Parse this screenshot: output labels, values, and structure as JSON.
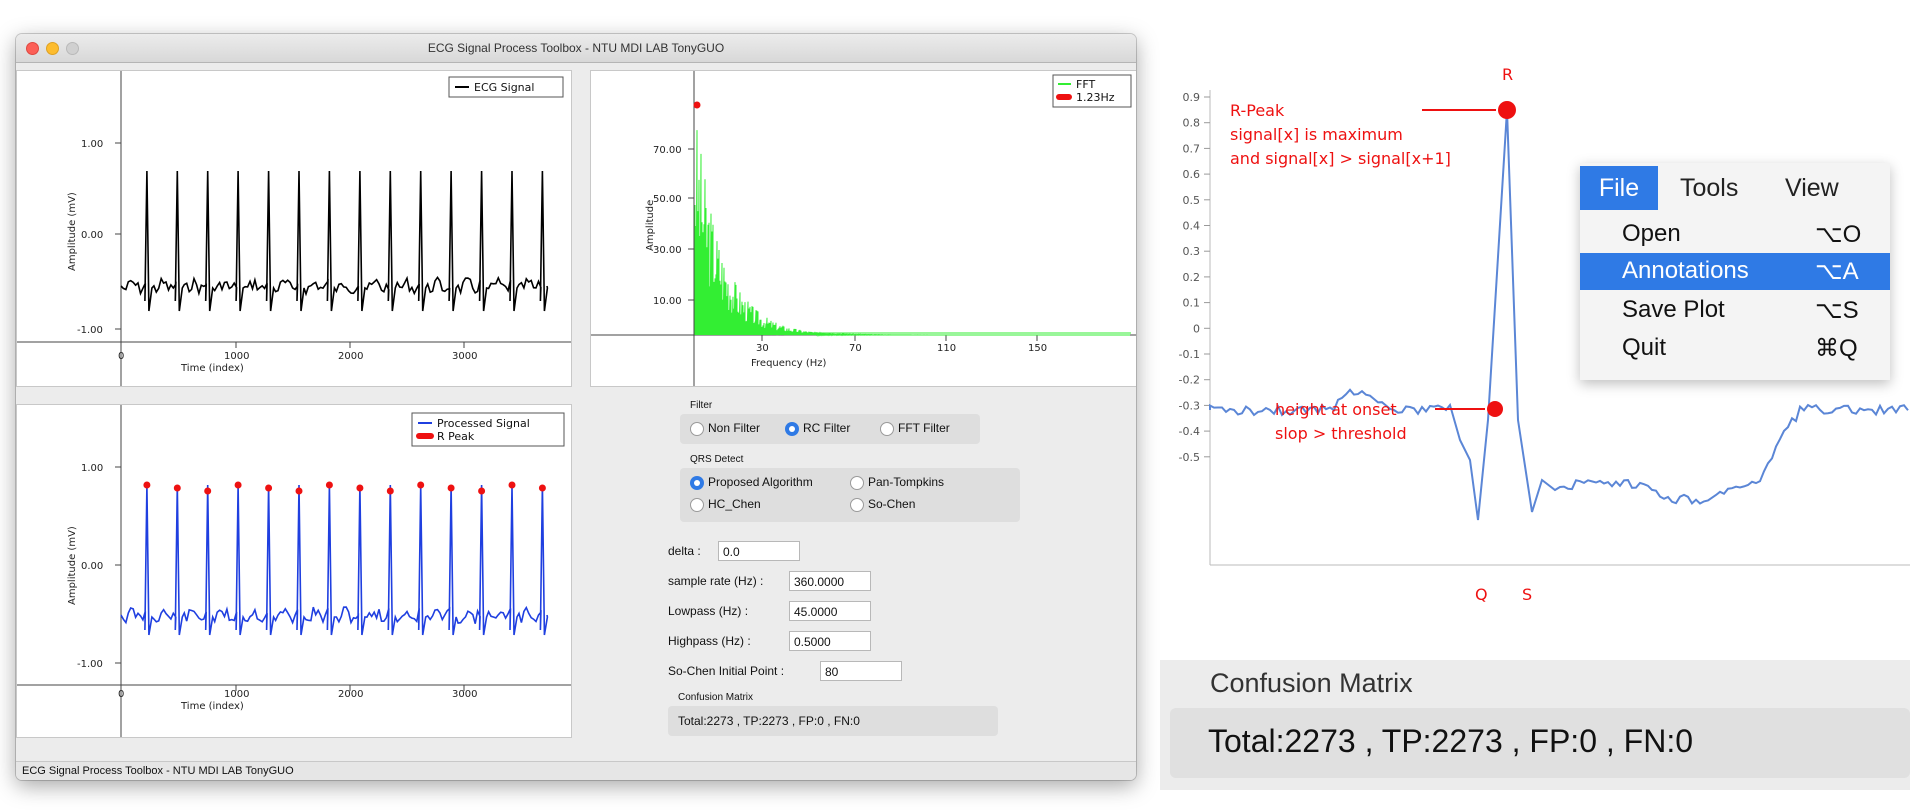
{
  "window": {
    "title": "ECG Signal Process Toolbox - NTU MDI LAB TonyGUO",
    "status": "ECG Signal Process Toolbox - NTU MDI LAB TonyGUO"
  },
  "colors": {
    "ecg": "#000000",
    "fft": "#33ee33",
    "processed": "#1f3fe0",
    "peak": "#ee1111",
    "accent": "#2f7ae5",
    "annotation": "#ee1111"
  },
  "plots": {
    "ecg": {
      "legend": "ECG Signal",
      "ylabel": "Amplitude (mV)",
      "xlabel": "Time (index)",
      "yticks": [
        "1.00",
        "0.00",
        "-1.00"
      ],
      "xticks": [
        "0",
        "1000",
        "2000",
        "3000"
      ]
    },
    "fft": {
      "legend_series": "FFT",
      "legend_peak": "1.23Hz",
      "ylabel": "Amplitude",
      "xlabel": "Frequency (Hz)",
      "yticks": [
        "70.00",
        "50.00",
        "30.00",
        "10.00"
      ],
      "xticks": [
        "30",
        "70",
        "110",
        "150"
      ]
    },
    "processed": {
      "legend_series": "Processed Signal",
      "legend_peak": "R Peak",
      "ylabel": "Amplitude (mV)",
      "xlabel": "Time (index)",
      "yticks": [
        "1.00",
        "0.00",
        "-1.00"
      ],
      "xticks": [
        "0",
        "1000",
        "2000",
        "3000"
      ]
    }
  },
  "filter": {
    "title": "Filter",
    "options": [
      "Non Filter",
      "RC Filter",
      "FFT Filter"
    ],
    "selected": "RC Filter"
  },
  "qrs": {
    "title": "QRS Detect",
    "options": [
      "Proposed Algorithm",
      "Pan-Tompkins",
      "HC_Chen",
      "So-Chen"
    ],
    "selected": "Proposed Algorithm"
  },
  "params": {
    "delta_label": "delta :",
    "delta_value": "0.0",
    "sample_rate_label": "sample rate (Hz) :",
    "sample_rate_value": "360.0000",
    "lowpass_label": "Lowpass (Hz) :",
    "lowpass_value": "45.0000",
    "highpass_label": "Highpass (Hz) :",
    "highpass_value": "0.5000",
    "sochen_label": "So-Chen Initial Point :",
    "sochen_value": "80"
  },
  "confusion": {
    "title": "Confusion Matrix",
    "text": "Total:2273 , TP:2273 , FP:0 , FN:0"
  },
  "annotated_chart": {
    "yticks": [
      "0.9",
      "0.8",
      "0.7",
      "0.6",
      "0.5",
      "0.4",
      "0.3",
      "0.2",
      "0.1",
      "0",
      "-0.1",
      "-0.2",
      "-0.3",
      "-0.4",
      "-0.5"
    ],
    "r_label": "R",
    "q_label": "Q",
    "s_label": "S",
    "peak_title": "R-Peak",
    "peak_line1": "signal[x] is maximum",
    "peak_line2": "and signal[x] > signal[x+1]",
    "onset_line1": "height at onset",
    "onset_line2": "slop > threshold"
  },
  "menu": {
    "bar": [
      "File",
      "Tools",
      "View"
    ],
    "items": [
      {
        "label": "Open",
        "shortcut": "⌥O"
      },
      {
        "label": "Annotations",
        "shortcut": "⌥A"
      },
      {
        "label": "Save Plot",
        "shortcut": "⌥S"
      },
      {
        "label": "Quit",
        "shortcut": "⌘Q"
      }
    ],
    "selected_item": "Annotations"
  }
}
